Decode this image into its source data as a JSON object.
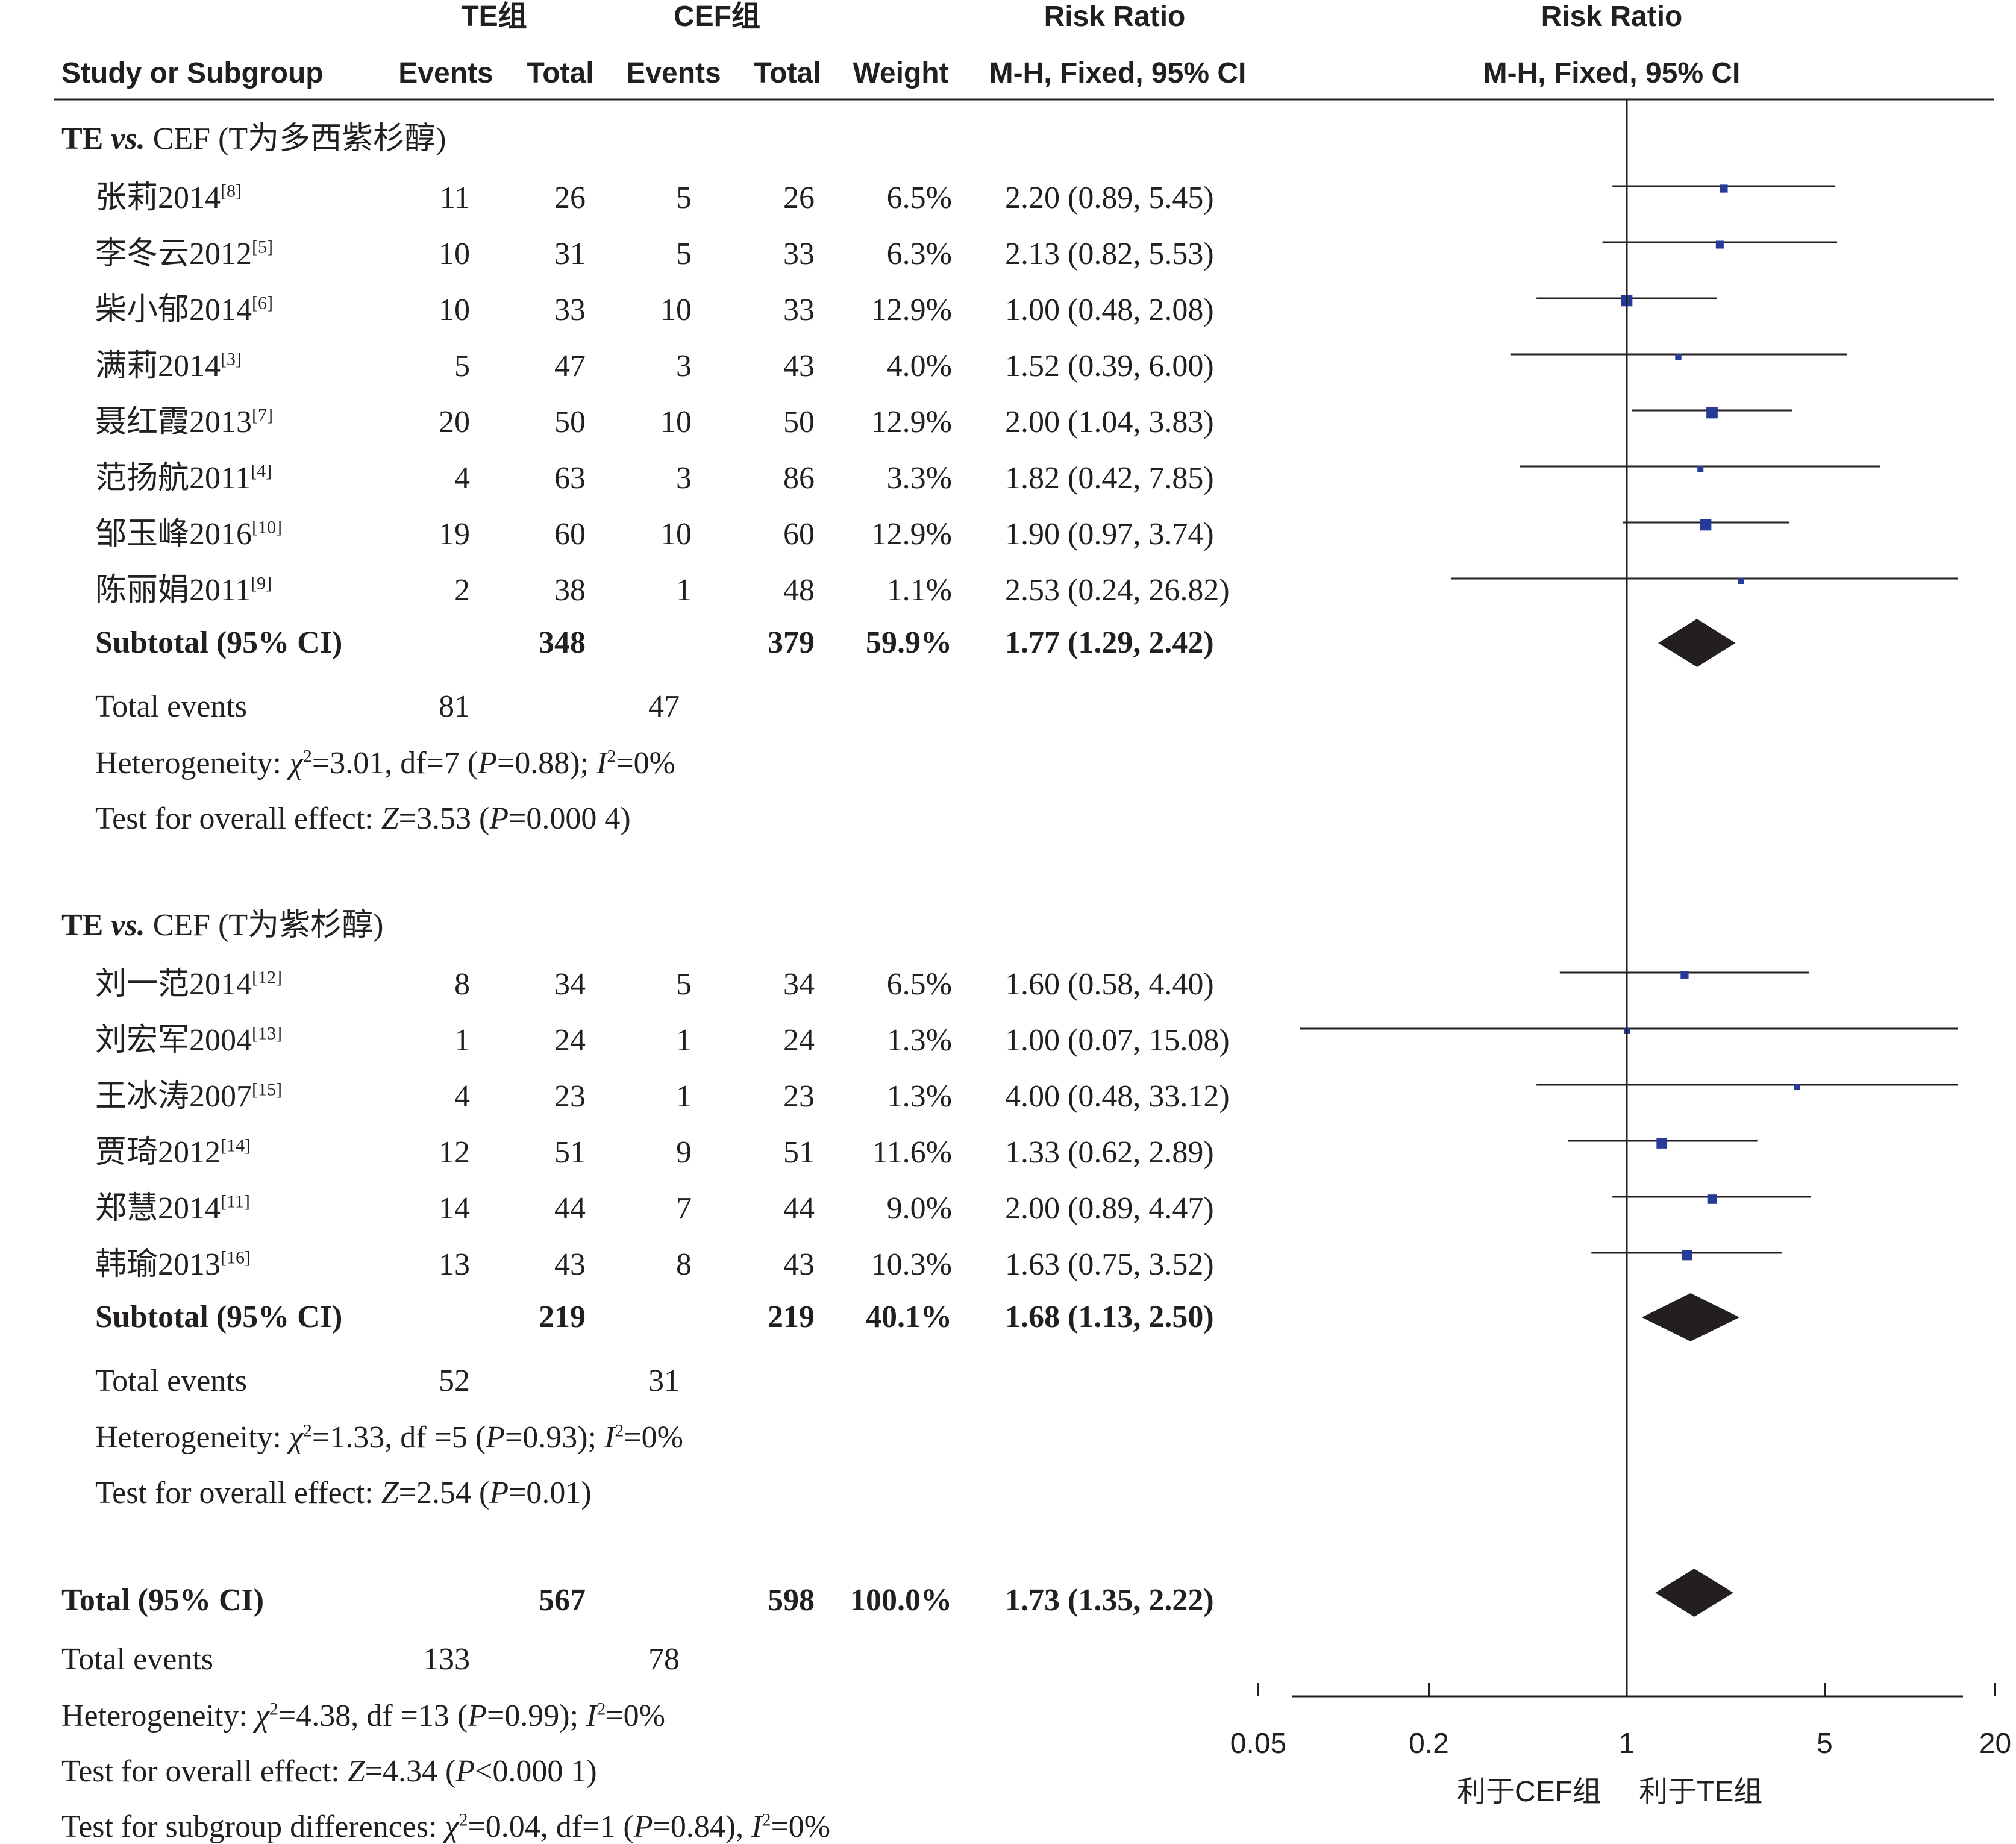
{
  "header": {
    "group1": "TE组",
    "group2": "CEF组",
    "rr1": "Risk Ratio",
    "rr2": "Risk Ratio",
    "study": "Study or Subgroup",
    "events1": "Events",
    "total1": "Total",
    "events2": "Events",
    "total2": "Total",
    "weight": "Weight",
    "method1": "M-H, Fixed, 95% CI",
    "method2": "M-H, Fixed, 95% CI"
  },
  "chart_data": {
    "type": "forest",
    "x_scale": "log",
    "xlim": [
      0.05,
      20
    ],
    "x_ticks": [
      "0.05",
      "0.2",
      "1",
      "5",
      "20"
    ],
    "favours_left": "利于CEF组",
    "favours_right": "利于TE组",
    "subgroups": [
      {
        "title_pre": "TE ",
        "title_vs": "vs.",
        "title_post": " CEF (T为多西紫杉醇)",
        "studies": [
          {
            "name": "张莉2014",
            "ref": "[8]",
            "e1": "11",
            "n1": "26",
            "e2": "5",
            "n2": "26",
            "weight": "6.5%",
            "ci": "2.20 (0.89, 5.45)",
            "rr": 2.2,
            "lo": 0.89,
            "hi": 5.45
          },
          {
            "name": "李冬云2012",
            "ref": "[5]",
            "e1": "10",
            "n1": "31",
            "e2": "5",
            "n2": "33",
            "weight": "6.3%",
            "ci": "2.13 (0.82, 5.53)",
            "rr": 2.13,
            "lo": 0.82,
            "hi": 5.53
          },
          {
            "name": "柴小郁2014",
            "ref": "[6]",
            "e1": "10",
            "n1": "33",
            "e2": "10",
            "n2": "33",
            "weight": "12.9%",
            "ci": "1.00 (0.48, 2.08)",
            "rr": 1.0,
            "lo": 0.48,
            "hi": 2.08
          },
          {
            "name": "满莉2014",
            "ref": "[3]",
            "e1": "5",
            "n1": "47",
            "e2": "3",
            "n2": "43",
            "weight": "4.0%",
            "ci": "1.52 (0.39, 6.00)",
            "rr": 1.52,
            "lo": 0.39,
            "hi": 6.0
          },
          {
            "name": "聂红霞2013",
            "ref": "[7]",
            "e1": "20",
            "n1": "50",
            "e2": "10",
            "n2": "50",
            "weight": "12.9%",
            "ci": "2.00 (1.04, 3.83)",
            "rr": 2.0,
            "lo": 1.04,
            "hi": 3.83
          },
          {
            "name": "范扬航2011",
            "ref": "[4]",
            "e1": "4",
            "n1": "63",
            "e2": "3",
            "n2": "86",
            "weight": "3.3%",
            "ci": "1.82 (0.42, 7.85)",
            "rr": 1.82,
            "lo": 0.42,
            "hi": 7.85
          },
          {
            "name": "邹玉峰2016",
            "ref": "[10]",
            "e1": "19",
            "n1": "60",
            "e2": "10",
            "n2": "60",
            "weight": "12.9%",
            "ci": "1.90 (0.97, 3.74)",
            "rr": 1.9,
            "lo": 0.97,
            "hi": 3.74
          },
          {
            "name": "陈丽娟2011",
            "ref": "[9]",
            "e1": "2",
            "n1": "38",
            "e2": "1",
            "n2": "48",
            "weight": "1.1%",
            "ci": "2.53 (0.24, 26.82)",
            "rr": 2.53,
            "lo": 0.24,
            "hi": 26.82
          }
        ],
        "subtotal": {
          "label": "Subtotal (95% CI)",
          "n1": "348",
          "n2": "379",
          "weight": "59.9%",
          "ci": "1.77 (1.29, 2.42)",
          "rr": 1.77,
          "lo": 1.29,
          "hi": 2.42
        },
        "events": {
          "label": "Total events",
          "e1": "81",
          "e2": "47"
        },
        "het": {
          "pre": "Heterogeneity: ",
          "chi": "χ",
          "sq": "2",
          "eq": "=3.01, df=7 (",
          "p": "P",
          "pv": "=0.88); ",
          "i": "I",
          "i2": "2",
          "iv": "=0%"
        },
        "overall": {
          "pre": "Test for overall effect: ",
          "z": "Z",
          "zv": "=3.53 (",
          "p": "P",
          "pv": "=0.000 4)"
        }
      },
      {
        "title_pre": "TE ",
        "title_vs": "vs.",
        "title_post": " CEF (T为紫杉醇)",
        "studies": [
          {
            "name": "刘一范2014",
            "ref": "[12]",
            "e1": "8",
            "n1": "34",
            "e2": "5",
            "n2": "34",
            "weight": "6.5%",
            "ci": "1.60 (0.58, 4.40)",
            "rr": 1.6,
            "lo": 0.58,
            "hi": 4.4
          },
          {
            "name": "刘宏军2004",
            "ref": "[13]",
            "e1": "1",
            "n1": "24",
            "e2": "1",
            "n2": "24",
            "weight": "1.3%",
            "ci": "1.00 (0.07, 15.08)",
            "rr": 1.0,
            "lo": 0.07,
            "hi": 15.08
          },
          {
            "name": "王冰涛2007",
            "ref": "[15]",
            "e1": "4",
            "n1": "23",
            "e2": "1",
            "n2": "23",
            "weight": "1.3%",
            "ci": "4.00 (0.48, 33.12)",
            "rr": 4.0,
            "lo": 0.48,
            "hi": 33.12
          },
          {
            "name": "贾琦2012",
            "ref": "[14]",
            "e1": "12",
            "n1": "51",
            "e2": "9",
            "n2": "51",
            "weight": "11.6%",
            "ci": "1.33 (0.62, 2.89)",
            "rr": 1.33,
            "lo": 0.62,
            "hi": 2.89
          },
          {
            "name": "郑慧2014",
            "ref": "[11]",
            "e1": "14",
            "n1": "44",
            "e2": "7",
            "n2": "44",
            "weight": "9.0%",
            "ci": "2.00 (0.89, 4.47)",
            "rr": 2.0,
            "lo": 0.89,
            "hi": 4.47
          },
          {
            "name": "韩瑜2013",
            "ref": "[16]",
            "e1": "13",
            "n1": "43",
            "e2": "8",
            "n2": "43",
            "weight": "10.3%",
            "ci": "1.63 (0.75, 3.52)",
            "rr": 1.63,
            "lo": 0.75,
            "hi": 3.52
          }
        ],
        "subtotal": {
          "label": "Subtotal (95% CI)",
          "n1": "219",
          "n2": "219",
          "weight": "40.1%",
          "ci": "1.68 (1.13, 2.50)",
          "rr": 1.68,
          "lo": 1.13,
          "hi": 2.5
        },
        "events": {
          "label": "Total events",
          "e1": "52",
          "e2": "31"
        },
        "het": {
          "pre": "Heterogeneity: ",
          "chi": "χ",
          "sq": "2",
          "eq": "=1.33, df =5 (",
          "p": "P",
          "pv": "=0.93); ",
          "i": "I",
          "i2": "2",
          "iv": "=0%"
        },
        "overall": {
          "pre": "Test for overall effect: ",
          "z": "Z",
          "zv": "=2.54 (",
          "p": "P",
          "pv": "=0.01)"
        }
      }
    ],
    "total": {
      "label": "Total (95% CI)",
      "n1": "567",
      "n2": "598",
      "weight": "100.0%",
      "ci": "1.73 (1.35, 2.22)",
      "rr": 1.73,
      "lo": 1.35,
      "hi": 2.22
    },
    "total_events": {
      "label": "Total events",
      "e1": "133",
      "e2": "78"
    },
    "total_het": {
      "pre": "Heterogeneity: ",
      "chi": "χ",
      "sq": "2",
      "eq": "=4.38, df =13 (",
      "p": "P",
      "pv": "=0.99); ",
      "i": "I",
      "i2": "2",
      "iv": "=0%"
    },
    "total_overall": {
      "pre": "Test for overall effect: ",
      "z": "Z",
      "zv": "=4.34 (",
      "p": "P",
      "pv": "<0.000 1)"
    },
    "subgroup_diff": {
      "pre": "Test for subgroup differences: ",
      "chi": "χ",
      "sq": "2",
      "eq": "=0.04, df=1 (",
      "p": "P",
      "pv": "=0.84), ",
      "i": "I",
      "i2": "2",
      "iv": "=0%"
    }
  }
}
